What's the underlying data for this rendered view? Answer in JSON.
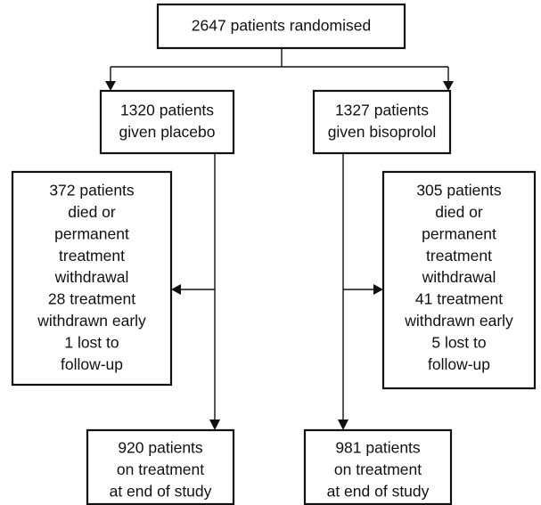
{
  "nodes": [
    {
      "lines": [
        "2647 patients randomised"
      ]
    },
    {
      "lines": [
        "1320 patients",
        "given placebo"
      ]
    },
    {
      "lines": [
        "1327 patients",
        "given bisoprolol"
      ]
    },
    {
      "lines": [
        "372 patients",
        "died or",
        "permanent",
        "treatment",
        "withdrawal",
        "28 treatment",
        "withdrawn early",
        "1 lost to",
        "follow-up"
      ]
    },
    {
      "lines": [
        "305 patients",
        "died or",
        "permanent",
        "treatment",
        "withdrawal",
        "41 treatment",
        "withdrawn early",
        "5 lost to",
        "follow-up"
      ]
    },
    {
      "lines": [
        "920 patients",
        "on treatment",
        "at end of study"
      ]
    },
    {
      "lines": [
        "981 patients",
        "on treatment",
        "at end of study"
      ]
    }
  ]
}
